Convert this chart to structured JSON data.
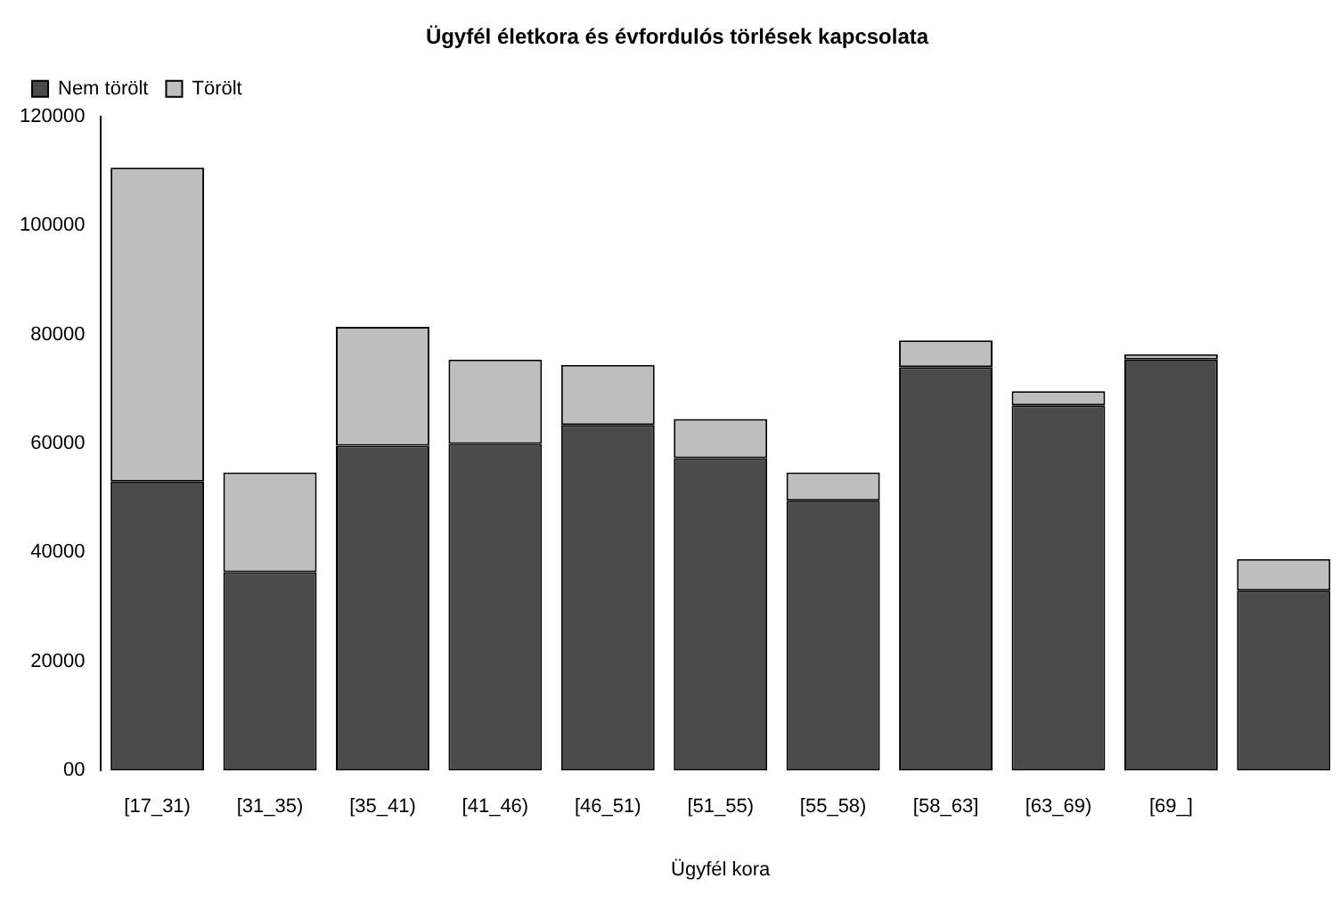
{
  "chart_data": {
    "type": "bar",
    "stacked": true,
    "title": "Ügyfél életkora és évfordulós törlések kapcsolata",
    "xlabel": "Ügyfél kora",
    "categories": [
      "[17_31)",
      "[31_35)",
      "[35_41)",
      "[41_46)",
      "[46_51)",
      "[51_55)",
      "[55_58)",
      "[58_63]",
      "[63_69)",
      "[69_]",
      null
    ],
    "series": [
      {
        "name": "Nem törölt",
        "color": "#4a4a4a",
        "values": [
          53000,
          36400,
          59600,
          59900,
          63400,
          57300,
          49500,
          74000,
          67000,
          75400,
          33000
        ]
      },
      {
        "name": "Törölt",
        "color": "#bebebe",
        "values": [
          57600,
          18300,
          21800,
          15500,
          11000,
          7200,
          5200,
          4900,
          2600,
          1000,
          5800
        ]
      }
    ],
    "ylim": [
      0,
      120000
    ],
    "yticks": [
      {
        "value": 0,
        "label": "00"
      },
      20000,
      40000,
      60000,
      80000,
      100000,
      120000
    ],
    "grid": false,
    "legend": "top left"
  }
}
